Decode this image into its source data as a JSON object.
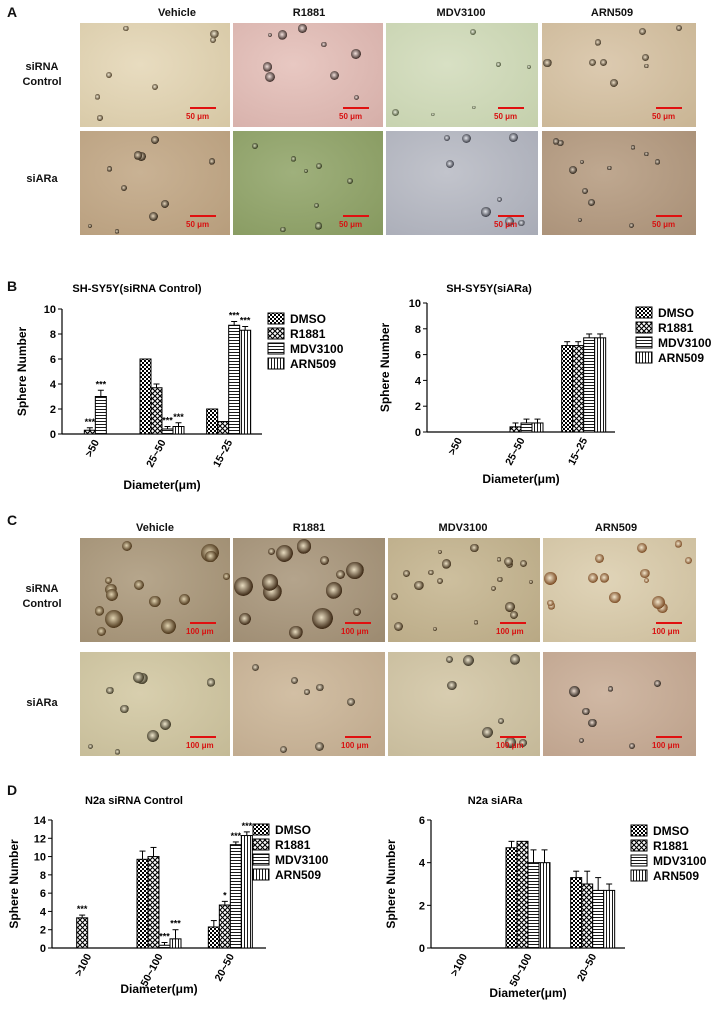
{
  "panel_a": {
    "letter": "A",
    "columns": [
      "Vehicle",
      "R1881",
      "MDV3100",
      "ARN509"
    ],
    "rows": [
      [
        "siRNA",
        "Control"
      ],
      [
        "siARa"
      ]
    ],
    "scale_label": "50 μm"
  },
  "panel_c": {
    "letter": "C",
    "columns": [
      "Vehicle",
      "R1881",
      "MDV3100",
      "ARN509"
    ],
    "rows": [
      [
        "siRNA",
        "Control"
      ],
      [
        "siARa"
      ]
    ],
    "scale_label": "100 μm"
  },
  "panel_b_letter": "B",
  "panel_d_letter": "D",
  "legend": [
    "DMSO",
    "R1881",
    "MDV3100",
    "ARN509"
  ],
  "colors": {
    "background": "#ffffff",
    "bars": "#000000",
    "scale_bar": "#e01010"
  },
  "chart_data": [
    {
      "type": "bar",
      "title": "SH-SY5Y(siRNA Control)",
      "xlabel": "Diameter(μm)",
      "ylabel": "Sphere Number",
      "categories": [
        ">50",
        "25~50",
        "15~25"
      ],
      "ylim": [
        0,
        10
      ],
      "yticks": [
        0,
        2,
        4,
        6,
        8,
        10
      ],
      "series": [
        {
          "name": "DMSO",
          "values": [
            0,
            6.0,
            2.0
          ],
          "errors": [
            0,
            0,
            0
          ]
        },
        {
          "name": "R1881",
          "values": [
            0.3,
            3.7,
            1.0
          ],
          "errors": [
            0.2,
            0.3,
            0
          ]
        },
        {
          "name": "MDV3100",
          "values": [
            3.0,
            0.4,
            8.7
          ],
          "errors": [
            0.5,
            0.2,
            0.3
          ]
        },
        {
          "name": "ARN509",
          "values": [
            0,
            0.6,
            8.3
          ],
          "errors": [
            0,
            0.3,
            0.3
          ]
        }
      ],
      "annotations": [
        {
          "category": ">50",
          "series": "R1881",
          "text": "***"
        },
        {
          "category": ">50",
          "series": "MDV3100",
          "text": "***"
        },
        {
          "category": "25~50",
          "series": "MDV3100",
          "text": "***"
        },
        {
          "category": "25~50",
          "series": "ARN509",
          "text": "***"
        },
        {
          "category": "15~25",
          "series": "MDV3100",
          "text": "***"
        },
        {
          "category": "15~25",
          "series": "ARN509",
          "text": "***"
        }
      ]
    },
    {
      "type": "bar",
      "title": "SH-SY5Y(siARa)",
      "xlabel": "Diameter(μm)",
      "ylabel": "Sphere Number",
      "categories": [
        ">50",
        "25~50",
        "15~25"
      ],
      "ylim": [
        0,
        10
      ],
      "yticks": [
        0,
        2,
        4,
        6,
        8,
        10
      ],
      "series": [
        {
          "name": "DMSO",
          "values": [
            0,
            0,
            6.7
          ],
          "errors": [
            0,
            0,
            0.3
          ]
        },
        {
          "name": "R1881",
          "values": [
            0,
            0.4,
            6.7
          ],
          "errors": [
            0,
            0.3,
            0.3
          ]
        },
        {
          "name": "MDV3100",
          "values": [
            0,
            0.7,
            7.3
          ],
          "errors": [
            0,
            0.3,
            0.3
          ]
        },
        {
          "name": "ARN509",
          "values": [
            0,
            0.7,
            7.3
          ],
          "errors": [
            0,
            0.3,
            0.3
          ]
        }
      ],
      "annotations": []
    },
    {
      "type": "bar",
      "title": "N2a siRNA Control",
      "xlabel": "Diameter(μm)",
      "ylabel": "Sphere Number",
      "categories": [
        ">100",
        "50~100",
        "20~50"
      ],
      "ylim": [
        0,
        14
      ],
      "yticks": [
        0,
        2,
        4,
        6,
        8,
        10,
        12,
        14
      ],
      "series": [
        {
          "name": "DMSO",
          "values": [
            0,
            9.7,
            2.3
          ],
          "errors": [
            0,
            0.9,
            0.7
          ]
        },
        {
          "name": "R1881",
          "values": [
            3.3,
            10.0,
            4.7
          ],
          "errors": [
            0.3,
            1.0,
            0.4
          ]
        },
        {
          "name": "MDV3100",
          "values": [
            0,
            0.3,
            11.3
          ],
          "errors": [
            0,
            0.3,
            0.3
          ]
        },
        {
          "name": "ARN509",
          "values": [
            0,
            1.0,
            12.3
          ],
          "errors": [
            0,
            1.0,
            0.4
          ]
        }
      ],
      "annotations": [
        {
          "category": ">100",
          "series": "R1881",
          "text": "***"
        },
        {
          "category": "50~100",
          "series": "MDV3100",
          "text": "***"
        },
        {
          "category": "50~100",
          "series": "ARN509",
          "text": "***"
        },
        {
          "category": "20~50",
          "series": "R1881",
          "text": "*"
        },
        {
          "category": "20~50",
          "series": "MDV3100",
          "text": "***"
        },
        {
          "category": "20~50",
          "series": "ARN509",
          "text": "***"
        }
      ]
    },
    {
      "type": "bar",
      "title": "N2a siARa",
      "xlabel": "Diameter(μm)",
      "ylabel": "Sphere Number",
      "categories": [
        ">100",
        "50~100",
        "20~50"
      ],
      "ylim": [
        0,
        6
      ],
      "yticks": [
        0,
        2,
        4,
        6
      ],
      "series": [
        {
          "name": "DMSO",
          "values": [
            0,
            4.7,
            3.3
          ],
          "errors": [
            0,
            0.3,
            0.3
          ]
        },
        {
          "name": "R1881",
          "values": [
            0,
            5.0,
            3.0
          ],
          "errors": [
            0,
            0,
            0.6
          ]
        },
        {
          "name": "MDV3100",
          "values": [
            0,
            4.0,
            2.7
          ],
          "errors": [
            0,
            0.6,
            0.6
          ]
        },
        {
          "name": "ARN509",
          "values": [
            0,
            4.0,
            2.7
          ],
          "errors": [
            0,
            0.6,
            0.3
          ]
        }
      ],
      "annotations": []
    }
  ]
}
